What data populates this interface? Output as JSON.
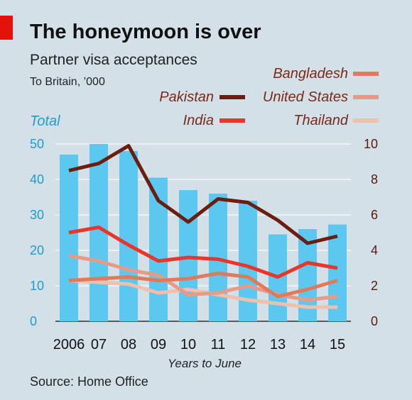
{
  "header": {
    "title": "The honeymoon is over",
    "subtitle": "Partner visa acceptances",
    "unit": "To Britain, ’000"
  },
  "footer": {
    "source": "Source: Home Office"
  },
  "colors": {
    "background": "#d4e0e8",
    "bars": "#5cc8ef",
    "accent_red": "#e3120b",
    "Pakistan": "#6b1e10",
    "India": "#e8362a",
    "Bangladesh": "#e07a5a",
    "United States": "#e89a85",
    "Thailand": "#f0c0ae"
  },
  "chart_data": {
    "type": "bar+line",
    "title": "The honeymoon is over",
    "subtitle": "Partner visa acceptances",
    "xlabel": "Years to June",
    "categories": [
      "2006",
      "07",
      "08",
      "09",
      "10",
      "11",
      "12",
      "13",
      "14",
      "15"
    ],
    "bar_series": {
      "name": "Total",
      "axis": "left",
      "ylim": [
        0,
        50
      ],
      "ticks": [
        0,
        10,
        20,
        30,
        40,
        50
      ],
      "values": [
        47,
        50,
        48,
        40.5,
        37,
        36,
        34,
        24.5,
        26,
        27.3
      ]
    },
    "line_axis": {
      "side": "right",
      "ylim": [
        0,
        10
      ],
      "ticks": [
        0,
        2,
        4,
        6,
        8,
        10
      ]
    },
    "series": [
      {
        "name": "Pakistan",
        "values": [
          8.5,
          8.9,
          9.9,
          6.8,
          5.6,
          6.9,
          6.7,
          5.7,
          4.4,
          4.8
        ]
      },
      {
        "name": "India",
        "values": [
          5.0,
          5.3,
          4.3,
          3.4,
          3.6,
          3.5,
          3.1,
          2.5,
          3.3,
          3.0
        ]
      },
      {
        "name": "Bangladesh",
        "values": [
          2.3,
          2.4,
          2.5,
          2.3,
          2.4,
          2.7,
          2.5,
          1.4,
          1.8,
          2.3
        ]
      },
      {
        "name": "United States",
        "values": [
          3.7,
          3.4,
          2.9,
          2.6,
          1.5,
          1.6,
          2.0,
          1.5,
          1.2,
          1.4
        ]
      },
      {
        "name": "Thailand",
        "values": [
          2.3,
          2.2,
          2.1,
          1.6,
          1.8,
          1.5,
          1.2,
          1.0,
          0.8,
          0.8
        ]
      }
    ],
    "legend": [
      "Bangladesh",
      "Pakistan",
      "United States",
      "India",
      "Thailand"
    ],
    "grid": true
  }
}
